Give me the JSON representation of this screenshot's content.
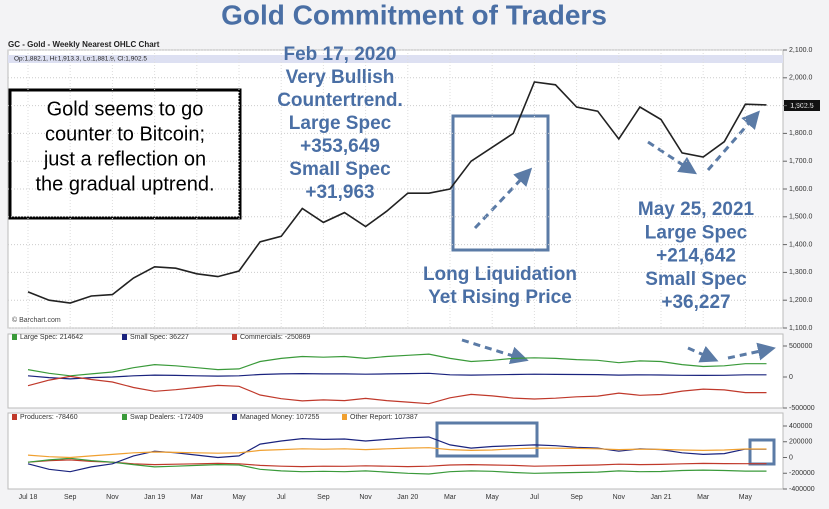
{
  "title": "Gold Commitment of Traders",
  "chart_data": [
    {
      "type": "line",
      "subtitle": "GC - Gold - Weekly Nearest OHLC Chart",
      "info": "Op:1,882.1, Hi:1,913.3, Lo:1,881.9, Cl:1,902.5",
      "source": "© Barchart.com",
      "last_label": "1,902.5",
      "color": "#222222",
      "values": [
        1230,
        1200,
        1190,
        1215,
        1220,
        1280,
        1320,
        1315,
        1295,
        1285,
        1305,
        1410,
        1430,
        1530,
        1480,
        1515,
        1465,
        1520,
        1585,
        1585,
        1600,
        1700,
        1750,
        1800,
        1985,
        1975,
        1895,
        1880,
        1780,
        1895,
        1850,
        1730,
        1715,
        1770,
        1905,
        1902.5
      ],
      "ylim": [
        1100,
        2100
      ],
      "yticks": [
        {
          "value": 1100,
          "label": "1,100.0"
        },
        {
          "value": 1200,
          "label": "1,200.0"
        },
        {
          "value": 1300,
          "label": "1,300.0"
        },
        {
          "value": 1400,
          "label": "1,400.0"
        },
        {
          "value": 1500,
          "label": "1,500.0"
        },
        {
          "value": 1600,
          "label": "1,600.0"
        },
        {
          "value": 1700,
          "label": "1,700.0"
        },
        {
          "value": 1800,
          "label": "1,800.0"
        },
        {
          "value": 1900,
          "label": "1,900.0"
        },
        {
          "value": 2000,
          "label": "2,000.0"
        },
        {
          "value": 2100,
          "label": "2,100.0"
        }
      ],
      "grid": true,
      "annotations": [
        [
          "Feb 17, 2020",
          "Very Bullish",
          "Countertrend.",
          "Large Spec",
          "+353,649",
          "Small Spec",
          "+31,963"
        ],
        [
          "Gold seems to go",
          "counter to Bitcoin;",
          "just a reflection on",
          "the gradual uptrend."
        ],
        [
          "Long Liquidation",
          "Yet Rising Price"
        ],
        [
          "May 25, 2021",
          "Large Spec",
          "+214,642",
          "Small Spec",
          "+36,227"
        ]
      ]
    },
    {
      "type": "line",
      "series": [
        {
          "name": "Large Spec: 214642",
          "color": "#3a9a3a",
          "values": [
            120000,
            60000,
            20000,
            50000,
            80000,
            150000,
            200000,
            180000,
            150000,
            120000,
            130000,
            250000,
            300000,
            330000,
            320000,
            330000,
            300000,
            330000,
            350000,
            370000,
            300000,
            250000,
            270000,
            300000,
            310000,
            300000,
            280000,
            270000,
            230000,
            260000,
            250000,
            200000,
            170000,
            180000,
            214642,
            214642
          ]
        },
        {
          "name": "Small Spec: 36227",
          "color": "#1a237e",
          "values": [
            20000,
            -10000,
            -30000,
            -10000,
            0,
            20000,
            30000,
            25000,
            20000,
            15000,
            20000,
            40000,
            50000,
            55000,
            50000,
            50000,
            45000,
            50000,
            55000,
            60000,
            35000,
            30000,
            35000,
            40000,
            45000,
            42000,
            40000,
            38000,
            30000,
            35000,
            33000,
            28000,
            25000,
            28000,
            36227,
            36227
          ]
        },
        {
          "name": "Commercials: -250869",
          "color": "#c0392b",
          "values": [
            -140000,
            -50000,
            10000,
            -40000,
            -80000,
            -170000,
            -230000,
            -205000,
            -170000,
            -135000,
            -150000,
            -290000,
            -350000,
            -385000,
            -370000,
            -380000,
            -345000,
            -380000,
            -405000,
            -430000,
            -335000,
            -280000,
            -305000,
            -340000,
            -355000,
            -342000,
            -320000,
            -308000,
            -260000,
            -295000,
            -283000,
            -228000,
            -195000,
            -208000,
            -250869,
            -250869
          ]
        }
      ],
      "ylim": [
        -500000,
        500000
      ],
      "yticks": [
        500000,
        0,
        -500000
      ]
    },
    {
      "type": "line",
      "series": [
        {
          "name": "Producers: -78460",
          "color": "#c0392b",
          "values": [
            -60000,
            -40000,
            -30000,
            -50000,
            -60000,
            -80000,
            -90000,
            -85000,
            -80000,
            -75000,
            -80000,
            -100000,
            -110000,
            -115000,
            -110000,
            -112000,
            -105000,
            -110000,
            -115000,
            -110000,
            -95000,
            -90000,
            -95000,
            -100000,
            -110000,
            -105000,
            -100000,
            -95000,
            -85000,
            -90000,
            -88000,
            -80000,
            -75000,
            -78000,
            -78460,
            -78460
          ]
        },
        {
          "name": "Swap Dealers: -172409",
          "color": "#3a9a3a",
          "values": [
            -60000,
            -30000,
            -10000,
            -40000,
            -60000,
            -90000,
            -120000,
            -110000,
            -100000,
            -90000,
            -95000,
            -150000,
            -170000,
            -180000,
            -175000,
            -180000,
            -170000,
            -185000,
            -200000,
            -210000,
            -180000,
            -170000,
            -175000,
            -190000,
            -200000,
            -195000,
            -190000,
            -185000,
            -170000,
            -180000,
            -178000,
            -165000,
            -160000,
            -165000,
            -172409,
            -172409
          ]
        },
        {
          "name": "Managed Money: 107255",
          "color": "#1a237e",
          "values": [
            -80000,
            -150000,
            -180000,
            -120000,
            -80000,
            20000,
            80000,
            60000,
            30000,
            0,
            20000,
            170000,
            210000,
            240000,
            230000,
            235000,
            210000,
            230000,
            250000,
            260000,
            160000,
            120000,
            140000,
            150000,
            160000,
            150000,
            130000,
            120000,
            80000,
            110000,
            100000,
            60000,
            40000,
            50000,
            107255,
            107255
          ]
        },
        {
          "name": "Other Report: 107387",
          "color": "#f0a030",
          "values": [
            30000,
            10000,
            0,
            20000,
            40000,
            60000,
            70000,
            65000,
            60000,
            55000,
            60000,
            90000,
            100000,
            110000,
            105000,
            110000,
            100000,
            110000,
            120000,
            125000,
            100000,
            90000,
            95000,
            110000,
            120000,
            118000,
            115000,
            110000,
            100000,
            105000,
            103000,
            95000,
            90000,
            95000,
            107387,
            107387
          ]
        }
      ],
      "ylim": [
        -400000,
        400000
      ],
      "yticks": [
        400000,
        200000,
        0,
        -200000,
        -400000
      ],
      "categories": [
        "Jul 18",
        null,
        "Sep",
        null,
        "Nov",
        null,
        "Jan 19",
        null,
        "Mar",
        null,
        "May",
        null,
        "Jul",
        null,
        "Sep",
        null,
        "Nov",
        null,
        "Jan 20",
        null,
        "Mar",
        null,
        "May",
        null,
        "Jul",
        null,
        "Sep",
        null,
        "Nov",
        null,
        "Jan 21",
        null,
        "Mar",
        null,
        "May",
        null
      ]
    }
  ]
}
